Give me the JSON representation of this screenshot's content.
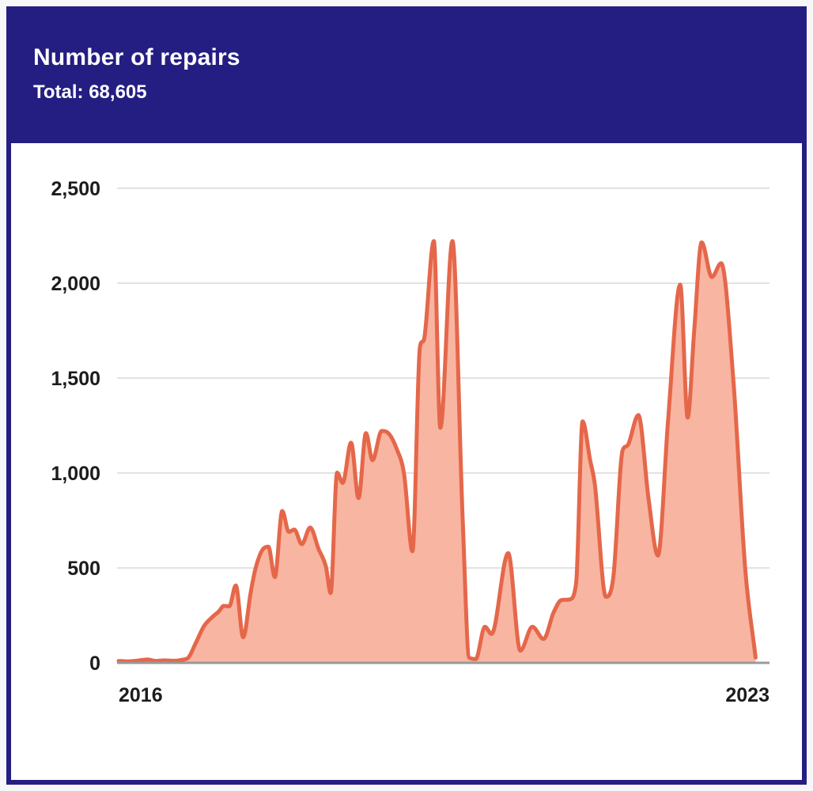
{
  "header": {
    "title": "Number of repairs",
    "total": "Total: 68,605"
  },
  "chart_data": {
    "type": "area",
    "title": "Number of repairs",
    "total_label": "Total: 68,605",
    "x_domain": [
      2016,
      2023
    ],
    "y_domain": [
      0,
      2500
    ],
    "y_ticks": [
      2500,
      2000,
      1500,
      1000,
      500,
      0
    ],
    "y_tick_labels": [
      "2,500",
      "2,000",
      "1,500",
      "1,000",
      "500",
      "0"
    ],
    "x_ticks": [
      2016,
      2023
    ],
    "x_tick_labels": [
      "2016",
      "2023"
    ],
    "grid": "horizontal",
    "legend": "none",
    "line_color": "#e5674a",
    "fill_color": "#f8b5a2",
    "axis_line_color": "#97999b",
    "gridline_color": "#d9d9d9",
    "series": [
      {
        "name": "Number of repairs",
        "points": [
          [
            2016.0,
            10
          ],
          [
            2016.1,
            8
          ],
          [
            2016.21,
            12
          ],
          [
            2016.31,
            18
          ],
          [
            2016.4,
            10
          ],
          [
            2016.49,
            13
          ],
          [
            2016.6,
            11
          ],
          [
            2016.68,
            16
          ],
          [
            2016.75,
            28
          ],
          [
            2016.83,
            105
          ],
          [
            2016.92,
            195
          ],
          [
            2017.0,
            238
          ],
          [
            2017.08,
            272
          ],
          [
            2017.13,
            300
          ],
          [
            2017.19,
            298
          ],
          [
            2017.26,
            408
          ],
          [
            2017.34,
            135
          ],
          [
            2017.42,
            370
          ],
          [
            2017.47,
            492
          ],
          [
            2017.54,
            590
          ],
          [
            2017.61,
            612
          ],
          [
            2017.68,
            452
          ],
          [
            2017.76,
            800
          ],
          [
            2017.83,
            690
          ],
          [
            2017.89,
            702
          ],
          [
            2017.97,
            625
          ],
          [
            2018.06,
            713
          ],
          [
            2018.15,
            600
          ],
          [
            2018.23,
            505
          ],
          [
            2018.28,
            368
          ],
          [
            2018.35,
            1002
          ],
          [
            2018.41,
            948
          ],
          [
            2018.5,
            1160
          ],
          [
            2018.58,
            868
          ],
          [
            2018.66,
            1210
          ],
          [
            2018.73,
            1068
          ],
          [
            2018.83,
            1222
          ],
          [
            2018.91,
            1205
          ],
          [
            2018.99,
            1128
          ],
          [
            2019.07,
            995
          ],
          [
            2019.16,
            588
          ],
          [
            2019.24,
            1660
          ],
          [
            2019.29,
            1718
          ],
          [
            2019.39,
            2222
          ],
          [
            2019.46,
            1238
          ],
          [
            2019.59,
            2222
          ],
          [
            2019.7,
            760
          ],
          [
            2019.77,
            28
          ],
          [
            2019.84,
            20
          ],
          [
            2019.94,
            190
          ],
          [
            2020.01,
            152
          ],
          [
            2020.19,
            578
          ],
          [
            2020.32,
            64
          ],
          [
            2020.45,
            190
          ],
          [
            2020.57,
            126
          ],
          [
            2020.68,
            268
          ],
          [
            2020.76,
            330
          ],
          [
            2020.85,
            334
          ],
          [
            2020.92,
            420
          ],
          [
            2020.99,
            1272
          ],
          [
            2021.07,
            1070
          ],
          [
            2021.12,
            945
          ],
          [
            2021.24,
            348
          ],
          [
            2021.32,
            450
          ],
          [
            2021.42,
            1118
          ],
          [
            2021.48,
            1150
          ],
          [
            2021.59,
            1305
          ],
          [
            2021.7,
            860
          ],
          [
            2021.8,
            565
          ],
          [
            2021.91,
            1280
          ],
          [
            2022.04,
            1992
          ],
          [
            2022.12,
            1292
          ],
          [
            2022.19,
            1750
          ],
          [
            2022.27,
            2215
          ],
          [
            2022.38,
            2032
          ],
          [
            2022.48,
            2105
          ],
          [
            2022.61,
            1500
          ],
          [
            2022.74,
            490
          ],
          [
            2022.85,
            28
          ]
        ]
      }
    ]
  }
}
